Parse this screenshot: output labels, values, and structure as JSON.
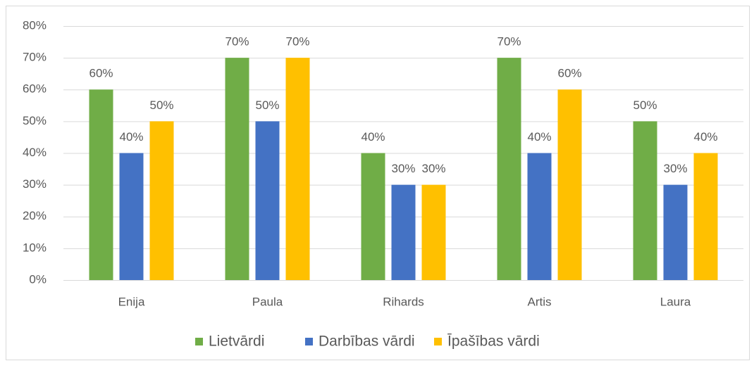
{
  "chart_data": {
    "type": "bar",
    "categories": [
      "Enija",
      "Paula",
      "Rihards",
      "Artis",
      "Laura"
    ],
    "series": [
      {
        "name": "Lietvārdi",
        "color": "#70ad47",
        "values": [
          60,
          70,
          40,
          70,
          50
        ],
        "value_labels": [
          "60%",
          "70%",
          "40%",
          "70%",
          "50%"
        ]
      },
      {
        "name": "Darbības vārdi",
        "color": "#4472c4",
        "values": [
          40,
          50,
          30,
          40,
          30
        ],
        "value_labels": [
          "40%",
          "50%",
          "30%",
          "40%",
          "30%"
        ]
      },
      {
        "name": "Īpašības vārdi",
        "color": "#ffc000",
        "values": [
          50,
          70,
          30,
          60,
          40
        ],
        "value_labels": [
          "50%",
          "70%",
          "30%",
          "60%",
          "40%"
        ]
      }
    ],
    "ylim": [
      0,
      80
    ],
    "yticks": [
      {
        "value": 0,
        "label": "0%"
      },
      {
        "value": 10,
        "label": "10%"
      },
      {
        "value": 20,
        "label": "20%"
      },
      {
        "value": 30,
        "label": "30%"
      },
      {
        "value": 40,
        "label": "40%"
      },
      {
        "value": 50,
        "label": "50%"
      },
      {
        "value": 60,
        "label": "60%"
      },
      {
        "value": 70,
        "label": "70%"
      },
      {
        "value": 80,
        "label": "80%"
      }
    ],
    "grid": true,
    "legend": "bottom"
  }
}
